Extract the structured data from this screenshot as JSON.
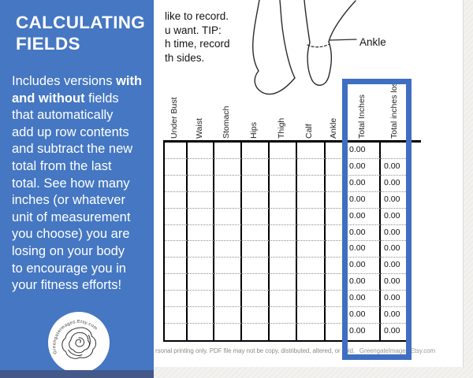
{
  "sidebar": {
    "title": "CALCULATING FIELDS",
    "description_lines": [
      [
        {
          "text": "Includes versions ",
          "bold": false
        },
        {
          "text": "with",
          "bold": true
        }
      ],
      [
        {
          "text": "and without",
          "bold": true
        },
        {
          "text": " fields",
          "bold": false
        }
      ],
      [
        {
          "text": "that automatically",
          "bold": false
        }
      ],
      [
        {
          "text": "add up row contents",
          "bold": false
        }
      ],
      [
        {
          "text": "and subtract the new",
          "bold": false
        }
      ],
      [
        {
          "text": "total from the last",
          "bold": false
        }
      ],
      [
        {
          "text": "total. See how many",
          "bold": false
        }
      ],
      [
        {
          "text": "inches (or whatever",
          "bold": false
        }
      ],
      [
        {
          "text": "unit of measurement",
          "bold": false
        }
      ],
      [
        {
          "text": "you choose) you are",
          "bold": false
        }
      ],
      [
        {
          "text": "losing on your body",
          "bold": false
        }
      ],
      [
        {
          "text": "to encourage you in",
          "bold": false
        }
      ],
      [
        {
          "text": "your fitness efforts!",
          "bold": false
        }
      ]
    ],
    "logo_text": "GreengateImages.Etsy.com"
  },
  "intro_lines": [
    "like to record.",
    "u want. TIP:",
    "h time, record",
    "th sides."
  ],
  "diagram": {
    "ankle_label": "Ankle"
  },
  "table": {
    "column_headers": [
      "Under Bust",
      "Waist",
      "Stomach",
      "Hips",
      "Thigh",
      "Calf",
      "Ankle",
      "Total Inches",
      "Total inches lost"
    ],
    "rows": [
      {
        "total_inches": "0.00",
        "total_inches_lost": ""
      },
      {
        "total_inches": "0.00",
        "total_inches_lost": "0.00"
      },
      {
        "total_inches": "0.00",
        "total_inches_lost": "0.00"
      },
      {
        "total_inches": "0.00",
        "total_inches_lost": "0.00"
      },
      {
        "total_inches": "0.00",
        "total_inches_lost": "0.00"
      },
      {
        "total_inches": "0.00",
        "total_inches_lost": "0.00"
      },
      {
        "total_inches": "0.00",
        "total_inches_lost": "0.00"
      },
      {
        "total_inches": "0.00",
        "total_inches_lost": "0.00"
      },
      {
        "total_inches": "0.00",
        "total_inches_lost": "0.00"
      },
      {
        "total_inches": "0.00",
        "total_inches_lost": "0.00"
      },
      {
        "total_inches": "0.00",
        "total_inches_lost": "0.00"
      },
      {
        "total_inches": "0.00",
        "total_inches_lost": "0.00"
      }
    ]
  },
  "footer": {
    "license_text": "rsonal printing only. PDF file may not be copy, distributed, altered, or sold.",
    "watermark": "GreengateImages.Etsy.com"
  },
  "colors": {
    "sidebar_blue": "#4577c3",
    "highlight_blue": "#3f6fc1"
  }
}
